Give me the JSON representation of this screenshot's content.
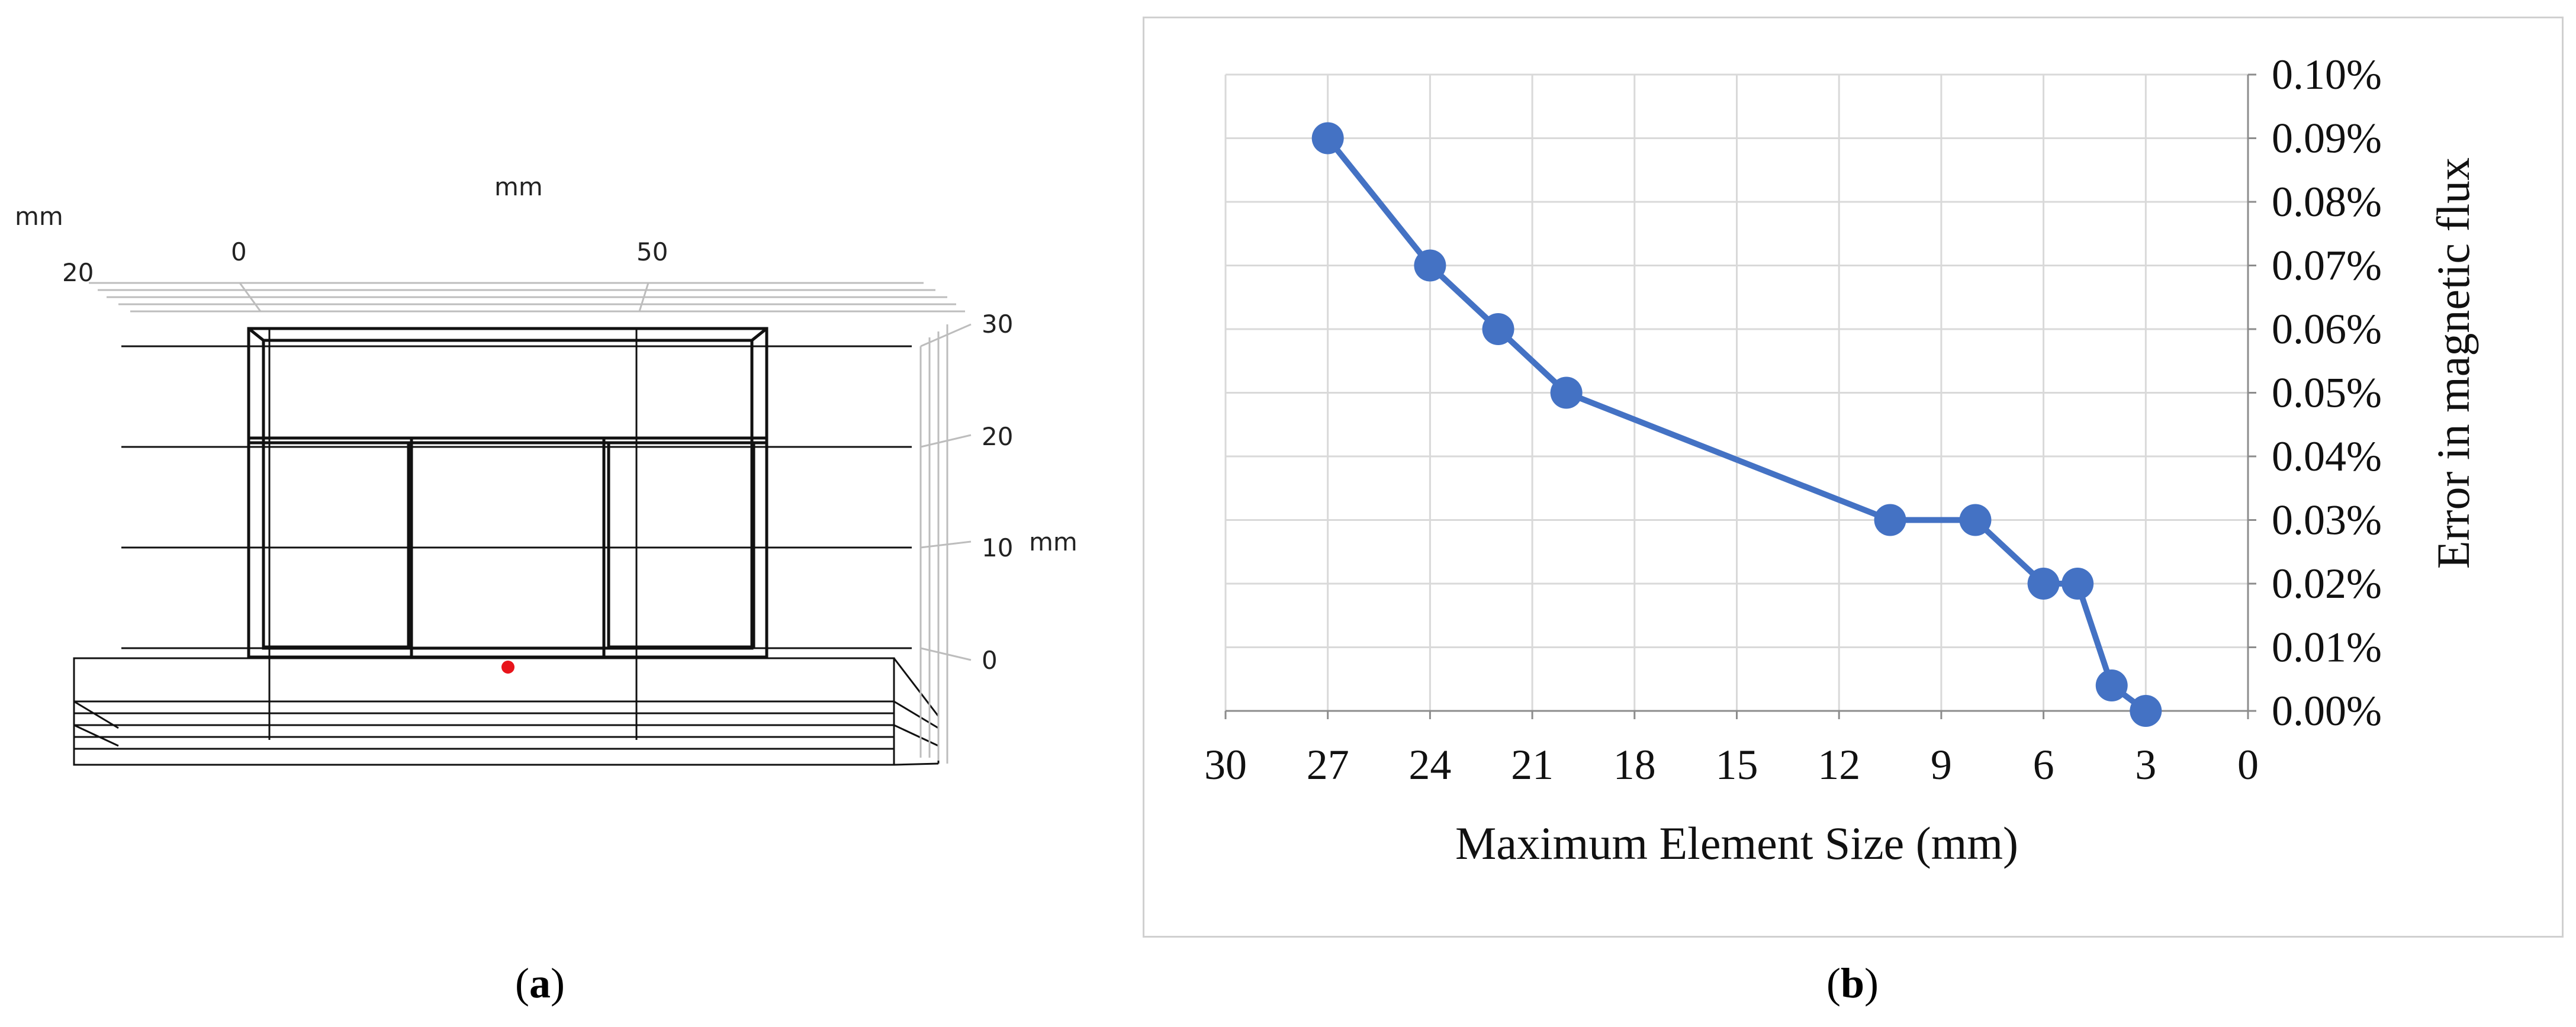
{
  "panel_a": {
    "caption": "a",
    "top_axis_unit": "mm",
    "left_axis_unit": "mm",
    "left_axis_value": "20",
    "top_axis_ticks": [
      "0",
      "50"
    ],
    "right_axis_unit": "mm",
    "right_axis_ticks": [
      "30",
      "20",
      "10",
      "0"
    ],
    "probe_point_color": "#e8141b"
  },
  "panel_b": {
    "caption": "b"
  },
  "chart_data": {
    "type": "line",
    "title": "",
    "xlabel": "Maximum Element Size (mm)",
    "ylabel": "Error in magnetic flux",
    "x_reversed": true,
    "xlim": [
      0,
      30
    ],
    "ylim": [
      0,
      0.1
    ],
    "x_ticks": [
      "30",
      "27",
      "24",
      "21",
      "18",
      "15",
      "12",
      "9",
      "6",
      "3",
      "0"
    ],
    "y_ticks": [
      "0.00%",
      "0.01%",
      "0.02%",
      "0.03%",
      "0.04%",
      "0.05%",
      "0.06%",
      "0.07%",
      "0.08%",
      "0.09%",
      "0.10%"
    ],
    "y_axis_side": "right",
    "grid": true,
    "series": [
      {
        "color": "#4472c4",
        "x": [
          27,
          24,
          22,
          20,
          10.5,
          8,
          6,
          5,
          4,
          3
        ],
        "y": [
          0.09,
          0.07,
          0.06,
          0.05,
          0.03,
          0.03,
          0.02,
          0.02,
          0.004,
          0.0
        ]
      }
    ]
  }
}
